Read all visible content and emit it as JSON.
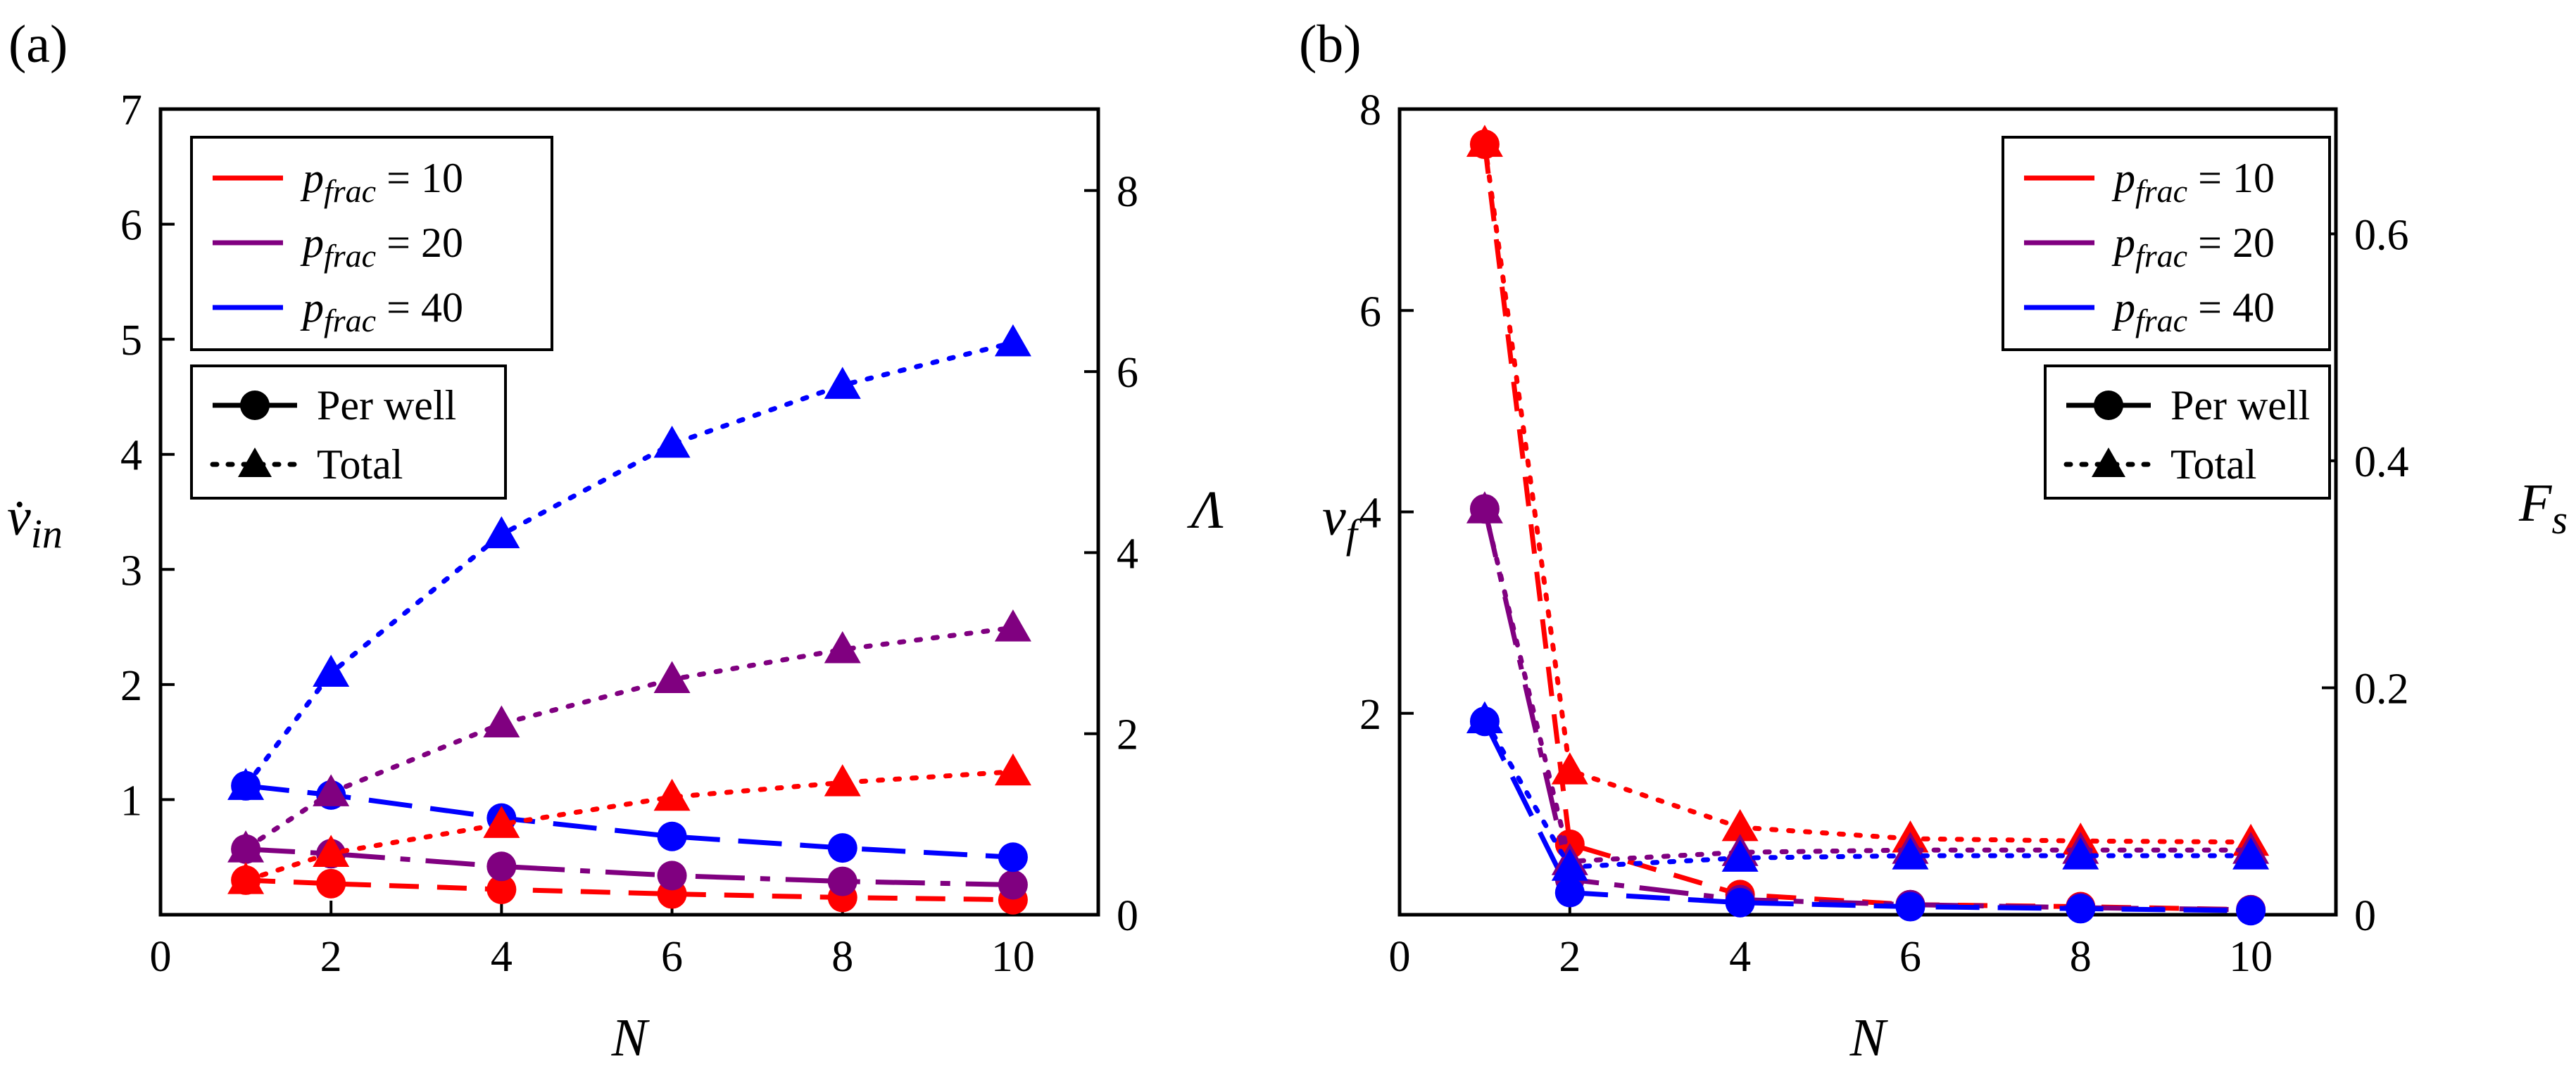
{
  "chart_data": [
    {
      "type": "line",
      "panel_label": "(a)",
      "xlabel": "N",
      "ylabel_left": "v̇in",
      "ylabel_left_main": "v̇",
      "ylabel_left_sub": "in",
      "ylabel_right": "Λ",
      "xlim": [
        0,
        11
      ],
      "ylim_left": [
        0,
        7
      ],
      "ylim_right": [
        0,
        8.9
      ],
      "x_ticks": [
        0,
        2,
        4,
        6,
        8,
        10
      ],
      "y_ticks_left": [
        1,
        2,
        3,
        4,
        5,
        6,
        7
      ],
      "y_ticks_right": [
        0,
        2,
        4,
        6,
        8
      ],
      "x": [
        1,
        2,
        4,
        6,
        8,
        10
      ],
      "legend_pfrac": [
        "p_frac = 10",
        "p_frac = 20",
        "p_frac = 40"
      ],
      "legend_markers": [
        "Per well",
        "Total"
      ],
      "series": [
        {
          "pfrac": "10",
          "kind": "Per well",
          "axis": "left",
          "color": "#ff0000",
          "values": [
            0.3,
            0.27,
            0.22,
            0.18,
            0.15,
            0.13
          ]
        },
        {
          "pfrac": "20",
          "kind": "Per well",
          "axis": "left",
          "color": "#800080",
          "values": [
            0.57,
            0.53,
            0.42,
            0.34,
            0.29,
            0.26
          ]
        },
        {
          "pfrac": "40",
          "kind": "Per well",
          "axis": "left",
          "color": "#0000ff",
          "values": [
            1.12,
            1.04,
            0.84,
            0.68,
            0.58,
            0.5
          ]
        },
        {
          "pfrac": "10",
          "kind": "Total",
          "axis": "right",
          "color": "#ff0000",
          "values": [
            0.38,
            0.68,
            1.0,
            1.3,
            1.46,
            1.58
          ]
        },
        {
          "pfrac": "20",
          "kind": "Total",
          "axis": "right",
          "color": "#800080",
          "values": [
            0.73,
            1.35,
            2.11,
            2.6,
            2.93,
            3.17
          ]
        },
        {
          "pfrac": "40",
          "kind": "Total",
          "axis": "right",
          "color": "#0000ff",
          "values": [
            1.42,
            2.67,
            4.2,
            5.2,
            5.85,
            6.32
          ]
        }
      ]
    },
    {
      "type": "line",
      "panel_label": "(b)",
      "xlabel": "N",
      "ylabel_left": "vf",
      "ylabel_left_main": "v",
      "ylabel_left_sub": "f",
      "ylabel_right": "Fs",
      "ylabel_right_main": "F",
      "ylabel_right_sub": "s",
      "xlim": [
        0,
        11
      ],
      "ylim_left": [
        0,
        8
      ],
      "ylim_right": [
        0,
        0.71
      ],
      "x_ticks": [
        0,
        2,
        4,
        6,
        8,
        10
      ],
      "y_ticks_left": [
        2,
        4,
        6,
        8
      ],
      "y_ticks_right": [
        0,
        0.2,
        0.4,
        0.6
      ],
      "x": [
        1,
        2,
        4,
        6,
        8,
        10
      ],
      "legend_pfrac": [
        "p_frac = 10",
        "p_frac = 20",
        "p_frac = 40"
      ],
      "legend_markers": [
        "Per well",
        "Total"
      ],
      "series": [
        {
          "pfrac": "10",
          "kind": "Per well",
          "axis": "left",
          "color": "#ff0000",
          "values": [
            7.65,
            0.7,
            0.2,
            0.1,
            0.08,
            0.05
          ]
        },
        {
          "pfrac": "20",
          "kind": "Per well",
          "axis": "left",
          "color": "#800080",
          "values": [
            4.03,
            0.35,
            0.15,
            0.1,
            0.07,
            0.05
          ]
        },
        {
          "pfrac": "40",
          "kind": "Per well",
          "axis": "left",
          "color": "#0000ff",
          "values": [
            1.92,
            0.22,
            0.12,
            0.08,
            0.06,
            0.04
          ]
        },
        {
          "pfrac": "10",
          "kind": "Total",
          "axis": "right",
          "color": "#ff0000",
          "values": [
            0.68,
            0.127,
            0.077,
            0.067,
            0.065,
            0.064
          ]
        },
        {
          "pfrac": "20",
          "kind": "Total",
          "axis": "right",
          "color": "#800080",
          "values": [
            0.357,
            0.047,
            0.055,
            0.057,
            0.057,
            0.057
          ]
        },
        {
          "pfrac": "40",
          "kind": "Total",
          "axis": "right",
          "color": "#0000ff",
          "values": [
            0.172,
            0.042,
            0.05,
            0.052,
            0.052,
            0.052
          ]
        }
      ]
    }
  ]
}
